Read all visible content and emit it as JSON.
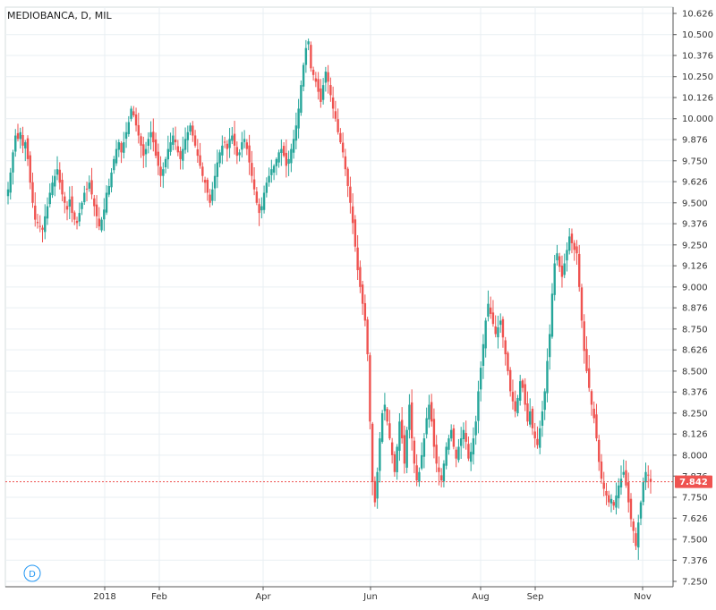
{
  "chart_data": {
    "type": "candlestick",
    "title": "MEDIOBANCA, D, MIL",
    "interval_badge": "D",
    "y_ticks": [
      "10.626",
      "10.500",
      "10.376",
      "10.250",
      "10.126",
      "10.000",
      "9.876",
      "9.750",
      "9.626",
      "9.500",
      "9.376",
      "9.250",
      "9.126",
      "9.000",
      "8.876",
      "8.750",
      "8.626",
      "8.500",
      "8.376",
      "8.250",
      "8.126",
      "8.000",
      "7.876",
      "7.750",
      "7.626",
      "7.500",
      "7.376",
      "7.250"
    ],
    "x_labels": [
      "2018",
      "Feb",
      "Apr",
      "Jun",
      "Aug",
      "Sep",
      "Nov"
    ],
    "ylim": [
      7.25,
      10.626
    ],
    "last_price": "7.842",
    "last_value": 7.842,
    "colors": {
      "up": "#26a69a",
      "down": "#ef5350",
      "grid": "#e9eff3",
      "axis": "#555555",
      "price_line": "#ef5350"
    },
    "closes": [
      9.58,
      9.68,
      9.8,
      9.9,
      9.88,
      9.92,
      9.84,
      9.86,
      9.76,
      9.62,
      9.5,
      9.4,
      9.38,
      9.36,
      9.34,
      9.42,
      9.48,
      9.56,
      9.62,
      9.66,
      9.7,
      9.62,
      9.55,
      9.5,
      9.46,
      9.52,
      9.44,
      9.4,
      9.38,
      9.44,
      9.5,
      9.56,
      9.58,
      9.62,
      9.55,
      9.48,
      9.42,
      9.36,
      9.4,
      9.46,
      9.56,
      9.6,
      9.68,
      9.76,
      9.82,
      9.86,
      9.8,
      9.86,
      9.92,
      9.98,
      10.06,
      10.02,
      9.96,
      9.9,
      9.84,
      9.78,
      9.82,
      9.88,
      9.92,
      9.86,
      9.78,
      9.72,
      9.66,
      9.7,
      9.76,
      9.82,
      9.86,
      9.9,
      9.86,
      9.8,
      9.76,
      9.82,
      9.88,
      9.92,
      9.96,
      9.9,
      9.84,
      9.78,
      9.72,
      9.66,
      9.62,
      9.56,
      9.5,
      9.58,
      9.66,
      9.74,
      9.8,
      9.84,
      9.86,
      9.82,
      9.88,
      9.9,
      9.84,
      9.78,
      9.8,
      9.86,
      9.88,
      9.82,
      9.74,
      9.66,
      9.58,
      9.5,
      9.44,
      9.48,
      9.56,
      9.62,
      9.66,
      9.7,
      9.72,
      9.76,
      9.8,
      9.82,
      9.78,
      9.72,
      9.76,
      9.82,
      9.88,
      9.96,
      10.06,
      10.2,
      10.32,
      10.42,
      10.46,
      10.3,
      10.26,
      10.22,
      10.16,
      10.1,
      10.2,
      10.28,
      10.22,
      10.14,
      10.06,
      10.0,
      9.92,
      9.86,
      9.8,
      9.7,
      9.6,
      9.5,
      9.38,
      9.24,
      9.1,
      9.0,
      8.9,
      8.8,
      8.6,
      8.2,
      7.84,
      7.72,
      7.9,
      8.1,
      8.25,
      8.3,
      8.2,
      8.1,
      8.0,
      7.9,
      8.05,
      8.2,
      8.1,
      7.95,
      8.15,
      8.3,
      8.1,
      7.95,
      7.85,
      7.9,
      8.0,
      8.1,
      8.22,
      8.3,
      8.2,
      8.05,
      7.95,
      7.9,
      7.85,
      7.95,
      8.05,
      8.1,
      8.15,
      8.05,
      7.98,
      8.05,
      8.1,
      8.15,
      8.08,
      7.98,
      8.02,
      8.1,
      8.2,
      8.38,
      8.52,
      8.66,
      8.8,
      8.9,
      8.84,
      8.78,
      8.72,
      8.76,
      8.8,
      8.7,
      8.6,
      8.5,
      8.38,
      8.32,
      8.26,
      8.34,
      8.44,
      8.4,
      8.3,
      8.2,
      8.26,
      8.16,
      8.1,
      8.06,
      8.16,
      8.26,
      8.38,
      8.56,
      8.72,
      8.96,
      9.14,
      9.2,
      9.12,
      9.06,
      9.14,
      9.22,
      9.3,
      9.26,
      9.22,
      9.2,
      9.0,
      8.8,
      8.62,
      8.5,
      8.4,
      8.3,
      8.22,
      8.1,
      7.96,
      7.86,
      7.8,
      7.76,
      7.72,
      7.74,
      7.7,
      7.76,
      7.82,
      7.86,
      7.9,
      7.82,
      7.72,
      7.62,
      7.55,
      7.46,
      7.6,
      7.72,
      7.84,
      7.9,
      7.88,
      7.84
    ]
  }
}
